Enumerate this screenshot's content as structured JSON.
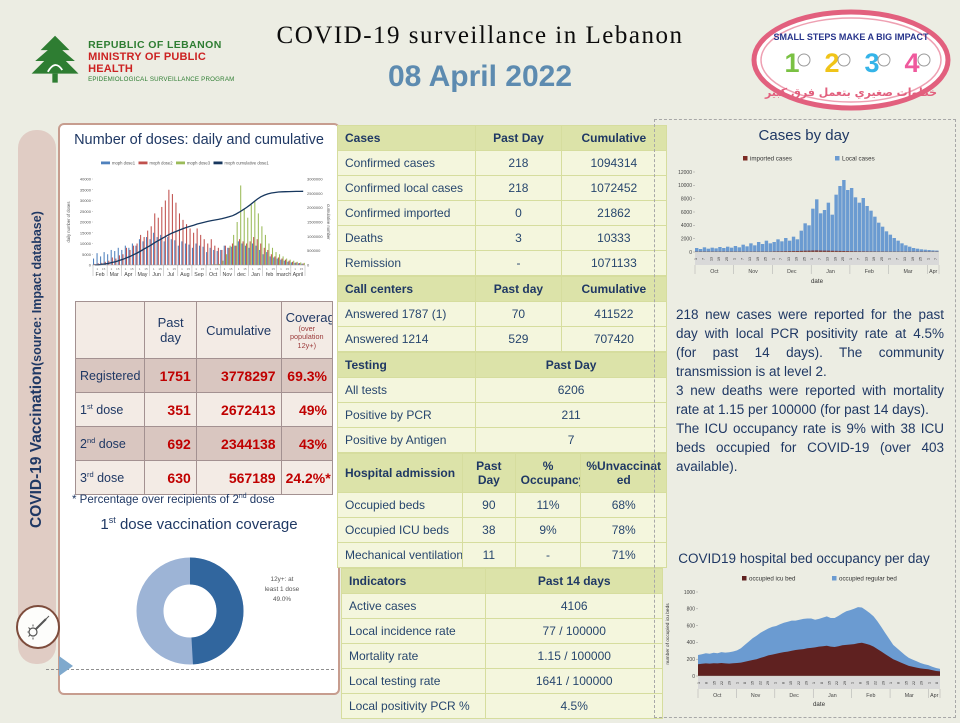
{
  "header": {
    "logo_left": {
      "line1": "REPUBLIC OF LEBANON",
      "line2": "MINISTRY OF PUBLIC HEALTH",
      "line3": "EPIDEMIOLOGICAL SURVEILLANCE PROGRAM"
    },
    "title": "COVID-19 surveillance in Lebanon",
    "date": "08 April 2022",
    "logo_right": {
      "slogan": "SMALL STEPS MAKE A BIG IMPACT",
      "numbers": [
        "1",
        "2",
        "3",
        "4"
      ],
      "number_colors": [
        "#7ac143",
        "#f0c419",
        "#35b4e8",
        "#ef5a9d"
      ],
      "arabic": "خطوات صغيري بتعمل فرق كبير"
    }
  },
  "sidebar": {
    "label": "COVID-19 Vaccination",
    "sublabel": "(source: Impact database)"
  },
  "vaccination": {
    "chart_title": "Number of doses: daily and cumulative",
    "table": {
      "col1": "Past day",
      "col2": "Cumulative",
      "col3": "Coverage",
      "col3_sub": "(over population 12y+)",
      "rows": [
        {
          "label": "Registered",
          "past": "1751",
          "cum": "3778297",
          "cov": "69.3%"
        },
        {
          "label": "1st dose",
          "past": "351",
          "cum": "2672413",
          "cov": "49%"
        },
        {
          "label": "2nd dose",
          "past": "692",
          "cum": "2344138",
          "cov": "43%"
        },
        {
          "label": "3rd dose",
          "past": "630",
          "cum": "567189",
          "cov": "24.2%*"
        }
      ]
    },
    "footnote": "* Percentage over recipients of 2nd dose",
    "donut_title": "1st dose vaccination coverage"
  },
  "tables": {
    "cases": {
      "header": [
        "Cases",
        "Past Day",
        "Cumulative"
      ],
      "rows": [
        [
          "Confirmed cases",
          "218",
          "1094314"
        ],
        [
          "Confirmed local cases",
          "218",
          "1072452"
        ],
        [
          "Confirmed imported",
          "0",
          "21862"
        ],
        [
          "Deaths",
          "3",
          "10333"
        ],
        [
          "Remission",
          "-",
          "1071133"
        ]
      ]
    },
    "call_centers": {
      "header": [
        "Call centers",
        "Past day",
        "Cumulative"
      ],
      "rows": [
        [
          "Answered 1787 (1)",
          "70",
          "411522"
        ],
        [
          "Answered 1214",
          "529",
          "707420"
        ]
      ]
    },
    "testing": {
      "header": [
        "Testing",
        "Past Day"
      ],
      "rows": [
        [
          "All tests",
          "6206"
        ],
        [
          "Positive by PCR",
          "211"
        ],
        [
          "Positive by Antigen",
          "7"
        ]
      ]
    },
    "hospital": {
      "header": [
        "Hospital admission",
        "Past Day",
        "% Occupancy",
        "%Unvaccinated"
      ],
      "rows": [
        [
          "Occupied beds",
          "90",
          "11%",
          "68%"
        ],
        [
          "Occupied ICU beds",
          "38",
          "9%",
          "78%"
        ],
        [
          "Mechanical ventilation",
          "11",
          "-",
          "71%"
        ]
      ]
    },
    "indicators": {
      "header": [
        "Indicators",
        "Past 14 days"
      ],
      "rows": [
        [
          "Active cases",
          "4106"
        ],
        [
          "Local incidence rate",
          "77 / 100000"
        ],
        [
          "Mortality rate",
          "1.15 / 100000"
        ],
        [
          "Local testing rate",
          "1641 / 100000"
        ],
        [
          "Local positivity PCR %",
          "4.5%"
        ]
      ]
    }
  },
  "right": {
    "cases_chart_title": "Cases by day",
    "summary": [
      "218 new cases were reported for the past day with local PCR positivity rate at 4.5% (for past 14 days). The community transmission is at level 2.",
      "3 new deaths were reported with mortality rate at 1.15 per 100000 (for past 14 days).",
      "The ICU occupancy rate is 9% with 38 ICU beds occupied for COVID-19 (over 403 available)."
    ],
    "beds_chart_title": "COVID19 hospital bed occupancy per day"
  },
  "chart_data": [
    {
      "name": "doses_daily_cumulative",
      "type": "bar",
      "title": "Number of doses: daily and cumulative",
      "ylabel_left": "daily number of doses",
      "ylabel_right": "cumulative number",
      "ylim_left": [
        0,
        40000
      ],
      "ytick_left": 5000,
      "ylim_right": [
        0,
        3000000
      ],
      "ytick_right": 500000,
      "months": [
        "Feb",
        "Mar",
        "Apr",
        "May",
        "Jun",
        "Jul",
        "Aug",
        "Sep",
        "Oct",
        "Nov",
        "dec",
        "Jan",
        "feb",
        "march",
        "April"
      ],
      "series": [
        {
          "name": "moph dose1",
          "color": "#4f81bd",
          "values": [
            3000,
            5500,
            4000,
            6000,
            5000,
            7000,
            6500,
            8000,
            7000,
            9000,
            8000,
            10000,
            9000,
            12000,
            11000,
            13000,
            12000,
            15000,
            13000,
            14000,
            11000,
            13000,
            12000,
            11500,
            9000,
            11000,
            10000,
            9500,
            8000,
            10000,
            9000,
            8500,
            6000,
            8000,
            7000,
            6500,
            7000,
            9000,
            8000,
            8500,
            9000,
            11000,
            10000,
            9000,
            8000,
            10000,
            9000,
            7000,
            5000,
            6000,
            4000,
            3500,
            3000,
            2500,
            2000,
            1500,
            1200,
            1000,
            800,
            600
          ]
        },
        {
          "name": "moph dose2",
          "color": "#c0504d",
          "values": [
            500,
            800,
            1000,
            1500,
            2000,
            3500,
            3000,
            4500,
            5000,
            8000,
            7000,
            9000,
            10000,
            14000,
            13000,
            16000,
            18000,
            24000,
            22000,
            27000,
            30000,
            35000,
            33000,
            29000,
            24000,
            21000,
            19000,
            17000,
            15000,
            17000,
            14000,
            12000,
            10000,
            12000,
            9000,
            8000,
            7000,
            9000,
            8000,
            10000,
            9000,
            12000,
            11000,
            10000,
            11000,
            13000,
            12000,
            10000,
            8000,
            7000,
            5000,
            4000,
            3500,
            3000,
            2500,
            2000,
            1500,
            1200,
            900,
            700
          ]
        },
        {
          "name": "moph dose3",
          "color": "#9bbb59",
          "values": [
            0,
            0,
            0,
            0,
            0,
            0,
            0,
            0,
            0,
            0,
            0,
            0,
            0,
            0,
            0,
            0,
            0,
            0,
            0,
            0,
            0,
            0,
            0,
            0,
            0,
            0,
            0,
            0,
            0,
            0,
            0,
            0,
            200,
            300,
            400,
            500,
            2000,
            5000,
            9000,
            14000,
            20000,
            37000,
            26000,
            22000,
            28000,
            30000,
            24000,
            18000,
            14000,
            10000,
            8000,
            6000,
            5000,
            4000,
            3000,
            2500,
            2000,
            1500,
            1200,
            1000
          ]
        },
        {
          "name": "moph cumulative dose1",
          "color": "#17375e",
          "axis": "right",
          "values": [
            2000,
            8000,
            20000,
            40000,
            60000,
            90000,
            120000,
            160000,
            200000,
            250000,
            300000,
            360000,
            420000,
            490000,
            560000,
            630000,
            700000,
            780000,
            850000,
            920000,
            990000,
            1060000,
            1120000,
            1170000,
            1220000,
            1270000,
            1310000,
            1350000,
            1390000,
            1430000,
            1460000,
            1490000,
            1520000,
            1550000,
            1570000,
            1590000,
            1620000,
            1650000,
            1680000,
            1720000,
            1780000,
            1850000,
            1930000,
            2010000,
            2100000,
            2200000,
            2300000,
            2380000,
            2440000,
            2480000,
            2510000,
            2530000,
            2545000,
            2552000,
            2558000,
            2562000,
            2565000,
            2567000,
            2569000,
            2571000
          ]
        }
      ]
    },
    {
      "name": "cases_by_day",
      "type": "bar",
      "title": "Cases by day",
      "xlabel": "date",
      "ylim": [
        0,
        12000
      ],
      "ytick": 2000,
      "months": [
        "Oct",
        "Nov",
        "Dec",
        "Jan",
        "Feb",
        "Mar",
        "Apr"
      ],
      "month_points": [
        10,
        10,
        10,
        10,
        10,
        10,
        3
      ],
      "day_tick_pattern": [
        "1",
        "7",
        "13",
        "19",
        "25"
      ],
      "series": [
        {
          "name": "imported cases",
          "color": "#7b2b23",
          "values": [
            40,
            35,
            45,
            40,
            50,
            40,
            45,
            50,
            40,
            45,
            50,
            45,
            55,
            50,
            60,
            55,
            60,
            55,
            65,
            60,
            90,
            100,
            110,
            120,
            130,
            140,
            150,
            170,
            190,
            200,
            220,
            230,
            210,
            200,
            190,
            180,
            170,
            160,
            150,
            140,
            120,
            110,
            100,
            95,
            90,
            85,
            80,
            75,
            70,
            65,
            55,
            50,
            45,
            40,
            38,
            35,
            32,
            30,
            28,
            26,
            25,
            22,
            20
          ]
        },
        {
          "name": "Local cases",
          "color": "#6b9bd1",
          "values": [
            600,
            450,
            700,
            500,
            650,
            550,
            750,
            600,
            800,
            650,
            900,
            700,
            1100,
            850,
            1300,
            1000,
            1500,
            1200,
            1700,
            1300,
            1500,
            1900,
            1600,
            2100,
            1700,
            2300,
            1900,
            3200,
            4300,
            4000,
            6500,
            7900,
            5800,
            6300,
            7400,
            5600,
            8600,
            9900,
            10800,
            9300,
            9600,
            8200,
            7400,
            8100,
            6900,
            6200,
            5300,
            4400,
            3800,
            3100,
            2600,
            2100,
            1700,
            1300,
            1000,
            800,
            600,
            500,
            400,
            350,
            300,
            250,
            220
          ]
        }
      ]
    },
    {
      "name": "bed_occupancy",
      "type": "stacked-area",
      "title": "COVID19 hospital bed occupancy per day",
      "xlabel": "date",
      "ylabel": "number of occupied icu beds",
      "ylim": [
        0,
        1000
      ],
      "ytick": 200,
      "months": [
        "Oct",
        "Nov",
        "Dec",
        "Jan",
        "Feb",
        "Mar",
        "Apr"
      ],
      "month_points": [
        10,
        10,
        10,
        10,
        10,
        10,
        3
      ],
      "day_tick_pattern": [
        "1",
        "8",
        "15",
        "22",
        "29"
      ],
      "series": [
        {
          "name": "occupied icu bed",
          "color": "#5f2120",
          "values": [
            140,
            145,
            150,
            148,
            152,
            150,
            155,
            150,
            148,
            152,
            155,
            160,
            170,
            180,
            190,
            200,
            215,
            230,
            245,
            255,
            265,
            275,
            285,
            290,
            300,
            310,
            315,
            320,
            330,
            335,
            340,
            350,
            355,
            360,
            350,
            345,
            355,
            365,
            370,
            375,
            380,
            390,
            395,
            385,
            370,
            350,
            320,
            290,
            260,
            230,
            200,
            180,
            160,
            140,
            120,
            110,
            100,
            90,
            85,
            80,
            70,
            60,
            55
          ]
        },
        {
          "name": "occupied regular bed",
          "color": "#6b9bd1",
          "values": [
            110,
            115,
            120,
            118,
            125,
            122,
            130,
            128,
            135,
            140,
            150,
            170,
            200,
            230,
            260,
            280,
            300,
            310,
            320,
            330,
            330,
            340,
            350,
            355,
            360,
            350,
            355,
            360,
            355,
            350,
            330,
            330,
            340,
            350,
            340,
            345,
            360,
            380,
            400,
            410,
            420,
            430,
            420,
            400,
            380,
            360,
            330,
            290,
            250,
            210,
            170,
            150,
            130,
            110,
            95,
            85,
            75,
            65,
            55,
            50,
            40,
            35,
            30
          ]
        }
      ]
    },
    {
      "name": "first_dose_donut",
      "type": "donut",
      "title": "1st dose vaccination coverage",
      "label_lines": [
        "12y+: at",
        "least 1 dose",
        "49.0%"
      ],
      "slices": [
        {
          "name": "at least 1 dose",
          "value": 49,
          "color": "#31669e"
        },
        {
          "name": "remaining",
          "value": 51,
          "color": "#9db4d6"
        }
      ]
    }
  ]
}
